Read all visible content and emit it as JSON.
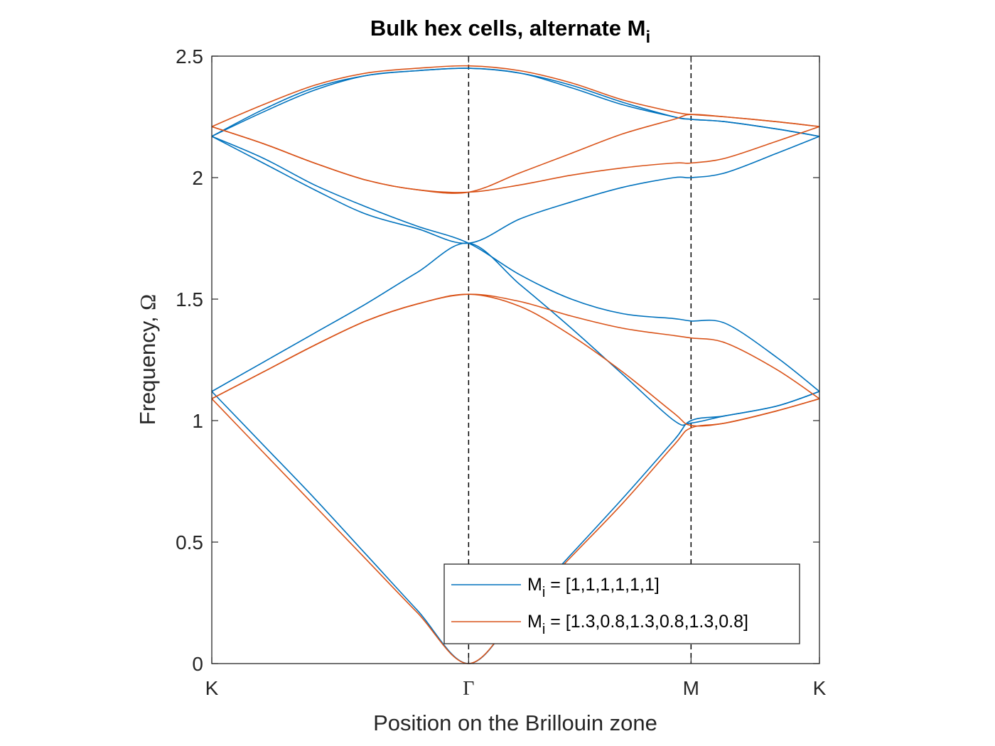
{
  "chart_data": {
    "type": "line",
    "title": "Bulk hex cells, alternate M",
    "title_subscript": "i",
    "xlabel": "Position on the Brillouin zone",
    "ylabel": "Frequency, ",
    "ylabel_symbol": "Ω",
    "x_ticks": [
      "K",
      "Γ",
      "M",
      "K"
    ],
    "x_tick_positions": [
      0,
      1,
      1.8660254,
      2.3660254
    ],
    "xlim": [
      0,
      2.3660254
    ],
    "ylim": [
      0,
      2.5
    ],
    "y_ticks": [
      0,
      0.5,
      1,
      1.5,
      2,
      2.5
    ],
    "y_tick_labels": [
      "0",
      "0.5",
      "1",
      "1.5",
      "2",
      "2.5"
    ],
    "vlines_at": [
      1,
      1.8660254
    ],
    "grid": false,
    "legend_placement": "bottom-right",
    "series": [
      {
        "name": "M",
        "name_subscript": "i",
        "name_suffix": " = [1,1,1,1,1,1]",
        "color": "#0072BD",
        "bands": [
          {
            "x": [
              0,
              0.2,
              0.4,
              0.6,
              0.8,
              1,
              1.2,
              1.4,
              1.6,
              1.8,
              1.866,
              2,
              2.2,
              2.366
            ],
            "y": [
              1.12,
              0.9,
              0.68,
              0.45,
              0.22,
              0,
              0.22,
              0.45,
              0.68,
              0.92,
              1.0,
              1.02,
              1.06,
              1.12
            ]
          },
          {
            "x": [
              0,
              0.2,
              0.4,
              0.6,
              0.8,
              1,
              1.2,
              1.4,
              1.6,
              1.8,
              1.866,
              2,
              2.2,
              2.366
            ],
            "y": [
              1.12,
              1.24,
              1.36,
              1.48,
              1.61,
              1.73,
              1.56,
              1.38,
              1.19,
              1.0,
              0.99,
              1.02,
              1.06,
              1.12
            ]
          },
          {
            "x": [
              0,
              0.2,
              0.4,
              0.6,
              0.8,
              1,
              1.2,
              1.4,
              1.6,
              1.8,
              1.866,
              2,
              2.2,
              2.366
            ],
            "y": [
              2.17,
              2.08,
              1.97,
              1.88,
              1.8,
              1.73,
              1.6,
              1.5,
              1.44,
              1.42,
              1.41,
              1.4,
              1.26,
              1.12
            ]
          },
          {
            "x": [
              0,
              0.2,
              0.4,
              0.6,
              0.8,
              1,
              1.2,
              1.4,
              1.6,
              1.8,
              1.866,
              2,
              2.2,
              2.366
            ],
            "y": [
              2.17,
              2.06,
              1.95,
              1.85,
              1.79,
              1.73,
              1.83,
              1.9,
              1.96,
              2.0,
              2.0,
              2.02,
              2.1,
              2.17
            ]
          },
          {
            "x": [
              0,
              0.2,
              0.4,
              0.6,
              0.8,
              1,
              1.2,
              1.4,
              1.6,
              1.8,
              1.866,
              2,
              2.2,
              2.366
            ],
            "y": [
              2.17,
              2.28,
              2.37,
              2.42,
              2.44,
              2.45,
              2.43,
              2.37,
              2.3,
              2.25,
              2.24,
              2.23,
              2.2,
              2.17
            ]
          },
          {
            "x": [
              0,
              0.2,
              0.4,
              0.6,
              0.8,
              1,
              1.2,
              1.4,
              1.6,
              1.8,
              1.866,
              2,
              2.2,
              2.366
            ],
            "y": [
              2.17,
              2.27,
              2.36,
              2.42,
              2.44,
              2.45,
              2.43,
              2.38,
              2.31,
              2.25,
              2.24,
              2.23,
              2.2,
              2.17
            ]
          }
        ]
      },
      {
        "name": "M",
        "name_subscript": "i",
        "name_suffix": " = [1.3,0.8,1.3,0.8,1.3,0.8]",
        "color": "#D95319",
        "bands": [
          {
            "x": [
              0,
              0.2,
              0.4,
              0.6,
              0.8,
              1,
              1.2,
              1.4,
              1.6,
              1.8,
              1.866,
              2,
              2.2,
              2.366
            ],
            "y": [
              1.09,
              0.87,
              0.65,
              0.43,
              0.21,
              0,
              0.22,
              0.44,
              0.66,
              0.9,
              0.97,
              0.99,
              1.04,
              1.09
            ]
          },
          {
            "x": [
              0,
              0.2,
              0.4,
              0.6,
              0.8,
              1,
              1.2,
              1.4,
              1.6,
              1.8,
              1.866,
              2,
              2.2,
              2.366
            ],
            "y": [
              1.09,
              1.2,
              1.31,
              1.41,
              1.48,
              1.52,
              1.47,
              1.35,
              1.2,
              1.03,
              0.98,
              0.99,
              1.04,
              1.09
            ]
          },
          {
            "x": [
              0,
              0.2,
              0.4,
              0.6,
              0.8,
              1,
              1.2,
              1.4,
              1.6,
              1.8,
              1.866,
              2,
              2.2,
              2.366
            ],
            "y": [
              1.09,
              1.2,
              1.31,
              1.41,
              1.48,
              1.52,
              1.49,
              1.43,
              1.38,
              1.35,
              1.34,
              1.32,
              1.21,
              1.09
            ]
          },
          {
            "x": [
              0,
              0.2,
              0.4,
              0.6,
              0.8,
              1,
              1.2,
              1.4,
              1.6,
              1.8,
              1.866,
              2,
              2.2,
              2.366
            ],
            "y": [
              2.21,
              2.14,
              2.06,
              1.99,
              1.95,
              1.94,
              1.97,
              2.01,
              2.04,
              2.06,
              2.06,
              2.08,
              2.15,
              2.21
            ]
          },
          {
            "x": [
              0,
              0.2,
              0.4,
              0.6,
              0.8,
              1,
              1.2,
              1.4,
              1.6,
              1.8,
              1.866,
              2,
              2.2,
              2.366
            ],
            "y": [
              2.21,
              2.14,
              2.06,
              1.99,
              1.95,
              1.94,
              2.02,
              2.1,
              2.18,
              2.24,
              2.26,
              2.25,
              2.23,
              2.21
            ]
          },
          {
            "x": [
              0,
              0.2,
              0.4,
              0.6,
              0.8,
              1,
              1.2,
              1.4,
              1.6,
              1.8,
              1.866,
              2,
              2.2,
              2.366
            ],
            "y": [
              2.21,
              2.3,
              2.38,
              2.43,
              2.45,
              2.46,
              2.44,
              2.39,
              2.32,
              2.27,
              2.26,
              2.25,
              2.23,
              2.21
            ]
          }
        ]
      }
    ]
  }
}
